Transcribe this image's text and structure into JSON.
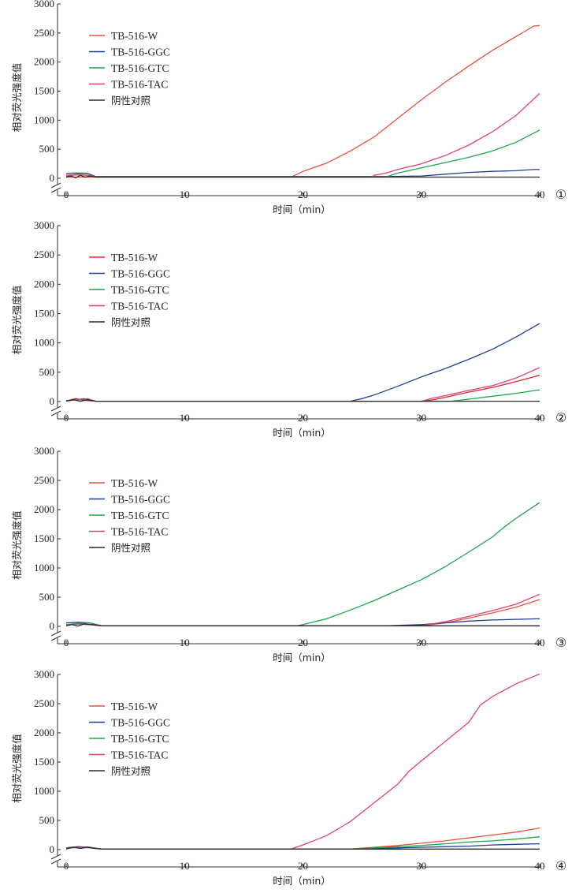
{
  "colors": {
    "TB-516-W": "#e8533a",
    "TB-516-GGC": "#1f3f93",
    "TB-516-GTC": "#1fa64f",
    "TB-516-TAC": "#e0407a",
    "阴性对照": "#2a2a2a",
    "red_variant": "#e32a2a"
  },
  "chart_data": [
    {
      "type": "line",
      "panel_label": "①",
      "xlabel": "时间（min）",
      "ylabel": "相对荧光强度值",
      "xlim": [
        0,
        40
      ],
      "ylim": [
        0,
        3000
      ],
      "xticks": [
        0,
        10,
        20,
        30,
        40
      ],
      "yticks": [
        0,
        500,
        1000,
        1500,
        2000,
        2500,
        3000
      ],
      "legend_position": "top-left",
      "series": [
        {
          "name": "TB-516-W",
          "color": "#e8533a",
          "points": [
            [
              0,
              20
            ],
            [
              19,
              20
            ],
            [
              20,
              120
            ],
            [
              22,
              260
            ],
            [
              24,
              470
            ],
            [
              26,
              710
            ],
            [
              28,
              1030
            ],
            [
              30,
              1350
            ],
            [
              32,
              1650
            ],
            [
              34,
              1930
            ],
            [
              36,
              2200
            ],
            [
              38,
              2440
            ],
            [
              39.5,
              2620
            ],
            [
              40,
              2630
            ]
          ]
        },
        {
          "name": "TB-516-GGC",
          "color": "#1f3f93",
          "points": [
            [
              0,
              80
            ],
            [
              0.5,
              90
            ],
            [
              1,
              90
            ],
            [
              1.8,
              85
            ],
            [
              2.5,
              30
            ],
            [
              27,
              30
            ],
            [
              30,
              40
            ],
            [
              32,
              70
            ],
            [
              34,
              100
            ],
            [
              36,
              120
            ],
            [
              38,
              130
            ],
            [
              39.5,
              150
            ],
            [
              40,
              150
            ]
          ]
        },
        {
          "name": "TB-516-GTC",
          "color": "#1fa64f",
          "points": [
            [
              0,
              50
            ],
            [
              1,
              70
            ],
            [
              2,
              50
            ],
            [
              2.5,
              20
            ],
            [
              27,
              20
            ],
            [
              28,
              90
            ],
            [
              30,
              180
            ],
            [
              32,
              270
            ],
            [
              34,
              360
            ],
            [
              36,
              470
            ],
            [
              38,
              620
            ],
            [
              40,
              830
            ]
          ]
        },
        {
          "name": "TB-516-TAC",
          "color": "#e0407a",
          "points": [
            [
              0,
              40
            ],
            [
              1,
              60
            ],
            [
              2,
              50
            ],
            [
              2.5,
              20
            ],
            [
              25.8,
              20
            ],
            [
              26,
              50
            ],
            [
              27,
              90
            ],
            [
              28,
              150
            ],
            [
              30,
              250
            ],
            [
              32,
              390
            ],
            [
              34,
              570
            ],
            [
              36,
              800
            ],
            [
              38,
              1080
            ],
            [
              40,
              1460
            ]
          ]
        },
        {
          "name": "阴性对照",
          "color": "#2a2a2a",
          "points": [
            [
              0,
              20
            ],
            [
              0.4,
              40
            ],
            [
              0.8,
              10
            ],
            [
              1.2,
              50
            ],
            [
              1.6,
              20
            ],
            [
              2,
              40
            ],
            [
              2.5,
              20
            ],
            [
              40,
              20
            ]
          ]
        }
      ]
    },
    {
      "type": "line",
      "panel_label": "②",
      "xlabel": "时间（min）",
      "ylabel": "相对荧光强度值",
      "xlim": [
        0,
        40
      ],
      "ylim": [
        0,
        3000
      ],
      "xticks": [
        0,
        10,
        20,
        30,
        40
      ],
      "yticks": [
        0,
        500,
        1000,
        1500,
        2000,
        2500,
        3000
      ],
      "legend_position": "top-left",
      "series": [
        {
          "name": "TB-516-W",
          "color": "#e32a2a",
          "points": [
            [
              0,
              10
            ],
            [
              0.8,
              50
            ],
            [
              1.5,
              20
            ],
            [
              2.5,
              5
            ],
            [
              30,
              5
            ],
            [
              31,
              30
            ],
            [
              32,
              70
            ],
            [
              34,
              160
            ],
            [
              36,
              240
            ],
            [
              38,
              340
            ],
            [
              40,
              450
            ]
          ]
        },
        {
          "name": "TB-516-GGC",
          "color": "#1f3f93",
          "points": [
            [
              0,
              10
            ],
            [
              1,
              40
            ],
            [
              2,
              20
            ],
            [
              2.5,
              5
            ],
            [
              24,
              5
            ],
            [
              25,
              50
            ],
            [
              26,
              110
            ],
            [
              28,
              260
            ],
            [
              30,
              420
            ],
            [
              32,
              560
            ],
            [
              34,
              720
            ],
            [
              36,
              890
            ],
            [
              38,
              1100
            ],
            [
              40,
              1330
            ]
          ]
        },
        {
          "name": "TB-516-GTC",
          "color": "#1fa64f",
          "points": [
            [
              0,
              10
            ],
            [
              1.5,
              50
            ],
            [
              2.5,
              5
            ],
            [
              32.5,
              5
            ],
            [
              34,
              40
            ],
            [
              36,
              90
            ],
            [
              38,
              140
            ],
            [
              40,
              200
            ]
          ]
        },
        {
          "name": "TB-516-TAC",
          "color": "#e0407a",
          "points": [
            [
              0,
              15
            ],
            [
              1,
              30
            ],
            [
              1.8,
              50
            ],
            [
              2.5,
              5
            ],
            [
              30,
              5
            ],
            [
              31,
              60
            ],
            [
              32,
              100
            ],
            [
              34,
              190
            ],
            [
              36,
              270
            ],
            [
              38,
              400
            ],
            [
              40,
              580
            ]
          ]
        },
        {
          "name": "阴性对照",
          "color": "#2a2a2a",
          "points": [
            [
              0,
              10
            ],
            [
              0.6,
              30
            ],
            [
              1.2,
              5
            ],
            [
              1.8,
              30
            ],
            [
              2.5,
              5
            ],
            [
              40,
              5
            ]
          ]
        }
      ]
    },
    {
      "type": "line",
      "panel_label": "③",
      "xlabel": "时间（min）",
      "ylabel": "相对荧光强度值",
      "xlim": [
        0,
        40
      ],
      "ylim": [
        0,
        3000
      ],
      "xticks": [
        0,
        10,
        20,
        30,
        40
      ],
      "yticks": [
        0,
        500,
        1000,
        1500,
        2000,
        2500,
        3000
      ],
      "legend_position": "top-left",
      "series": [
        {
          "name": "TB-516-W",
          "color": "#e8533a",
          "points": [
            [
              0,
              20
            ],
            [
              1,
              40
            ],
            [
              2,
              30
            ],
            [
              3,
              10
            ],
            [
              30,
              10
            ],
            [
              32,
              60
            ],
            [
              34,
              140
            ],
            [
              36,
              230
            ],
            [
              38,
              330
            ],
            [
              40,
              460
            ]
          ]
        },
        {
          "name": "TB-516-GGC",
          "color": "#1f3f93",
          "points": [
            [
              0,
              60
            ],
            [
              1,
              70
            ],
            [
              2,
              60
            ],
            [
              3,
              10
            ],
            [
              27,
              10
            ],
            [
              30,
              30
            ],
            [
              32,
              60
            ],
            [
              34,
              90
            ],
            [
              36,
              110
            ],
            [
              38,
              120
            ],
            [
              40,
              130
            ]
          ]
        },
        {
          "name": "TB-516-GTC",
          "color": "#1fa64f",
          "points": [
            [
              0,
              30
            ],
            [
              1,
              50
            ],
            [
              2,
              60
            ],
            [
              3,
              10
            ],
            [
              19.5,
              10
            ],
            [
              20,
              30
            ],
            [
              22,
              130
            ],
            [
              24,
              280
            ],
            [
              26,
              440
            ],
            [
              28,
              620
            ],
            [
              30,
              800
            ],
            [
              32,
              1020
            ],
            [
              34,
              1270
            ],
            [
              36,
              1530
            ],
            [
              37,
              1700
            ],
            [
              38,
              1850
            ],
            [
              40,
              2120
            ]
          ]
        },
        {
          "name": "TB-516-TAC",
          "color": "#e0407a",
          "points": [
            [
              0,
              20
            ],
            [
              1,
              40
            ],
            [
              2,
              30
            ],
            [
              3,
              10
            ],
            [
              30,
              10
            ],
            [
              32,
              80
            ],
            [
              34,
              170
            ],
            [
              36,
              270
            ],
            [
              38,
              380
            ],
            [
              40,
              550
            ]
          ]
        },
        {
          "name": "阴性对照",
          "color": "#2a2a2a",
          "points": [
            [
              0,
              10
            ],
            [
              0.5,
              30
            ],
            [
              1,
              5
            ],
            [
              1.5,
              40
            ],
            [
              2.2,
              30
            ],
            [
              3,
              10
            ],
            [
              40,
              10
            ]
          ]
        }
      ]
    },
    {
      "type": "line",
      "panel_label": "④",
      "xlabel": "时间（min）",
      "ylabel": "相对荧光强度值",
      "xlim": [
        0,
        40
      ],
      "ylim": [
        0,
        3000
      ],
      "xticks": [
        0,
        10,
        20,
        30,
        40
      ],
      "yticks": [
        0,
        500,
        1000,
        1500,
        2000,
        2500,
        3000
      ],
      "legend_position": "top-left",
      "series": [
        {
          "name": "TB-516-W",
          "color": "#e8533a",
          "points": [
            [
              0,
              30
            ],
            [
              1,
              50
            ],
            [
              2,
              40
            ],
            [
              3,
              10
            ],
            [
              24,
              10
            ],
            [
              26,
              40
            ],
            [
              28,
              70
            ],
            [
              30,
              110
            ],
            [
              32,
              150
            ],
            [
              34,
              200
            ],
            [
              36,
              250
            ],
            [
              38,
              300
            ],
            [
              40,
              370
            ]
          ]
        },
        {
          "name": "TB-516-GGC",
          "color": "#1f3f93",
          "points": [
            [
              0,
              30
            ],
            [
              1,
              50
            ],
            [
              2,
              40
            ],
            [
              3,
              10
            ],
            [
              25,
              10
            ],
            [
              28,
              30
            ],
            [
              30,
              40
            ],
            [
              32,
              50
            ],
            [
              34,
              60
            ],
            [
              36,
              80
            ],
            [
              38,
              90
            ],
            [
              40,
              100
            ]
          ]
        },
        {
          "name": "TB-516-GTC",
          "color": "#1fa64f",
          "points": [
            [
              0,
              20
            ],
            [
              1,
              40
            ],
            [
              2,
              40
            ],
            [
              3,
              10
            ],
            [
              24,
              10
            ],
            [
              26,
              30
            ],
            [
              28,
              50
            ],
            [
              30,
              70
            ],
            [
              32,
              100
            ],
            [
              34,
              130
            ],
            [
              36,
              150
            ],
            [
              38,
              180
            ],
            [
              40,
              220
            ]
          ]
        },
        {
          "name": "TB-516-TAC",
          "color": "#e0407a",
          "points": [
            [
              0,
              20
            ],
            [
              1,
              40
            ],
            [
              2,
              30
            ],
            [
              3,
              10
            ],
            [
              19,
              10
            ],
            [
              20,
              80
            ],
            [
              21,
              160
            ],
            [
              22,
              240
            ],
            [
              24,
              480
            ],
            [
              26,
              800
            ],
            [
              28,
              1120
            ],
            [
              29,
              1350
            ],
            [
              30,
              1520
            ],
            [
              32,
              1850
            ],
            [
              34,
              2180
            ],
            [
              35,
              2480
            ],
            [
              36,
              2620
            ],
            [
              38,
              2840
            ],
            [
              40,
              3010
            ]
          ]
        },
        {
          "name": "阴性对照",
          "color": "#2a2a2a",
          "points": [
            [
              0,
              10
            ],
            [
              0.6,
              40
            ],
            [
              1.2,
              20
            ],
            [
              1.8,
              40
            ],
            [
              2.4,
              20
            ],
            [
              3,
              10
            ],
            [
              40,
              10
            ]
          ]
        }
      ]
    }
  ]
}
